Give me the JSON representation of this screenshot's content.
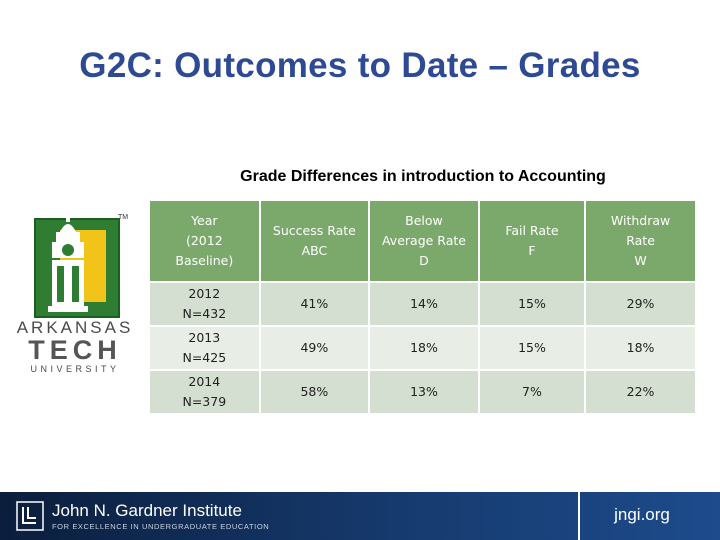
{
  "slide": {
    "title": "G2C: Outcomes to Date – Grades",
    "subtitle": "Grade Differences in introduction to Accounting"
  },
  "logo": {
    "tm": "TM",
    "word1": "ARKANSAS",
    "word2": "TECH",
    "word3": "UNIVERSITY",
    "colors": {
      "green": "#2e7d32",
      "gold": "#f2c318",
      "text": "#4a4a4a"
    }
  },
  "table": {
    "headers": [
      [
        "Year",
        "(2012",
        "Baseline)"
      ],
      [
        "Success Rate",
        "ABC"
      ],
      [
        "Below",
        "Average Rate",
        "D"
      ],
      [
        "Fail Rate",
        "F"
      ],
      [
        "Withdraw",
        "Rate",
        "W"
      ]
    ],
    "rows": [
      {
        "year": "2012",
        "n": "N=432",
        "success": "41%",
        "below_avg": "14%",
        "fail": "15%",
        "withdraw": "29%"
      },
      {
        "year": "2013",
        "n": "N=425",
        "success": "49%",
        "below_avg": "18%",
        "fail": "15%",
        "withdraw": "18%"
      },
      {
        "year": "2014",
        "n": "N=379",
        "success": "58%",
        "below_avg": "13%",
        "fail": "7%",
        "withdraw": "22%"
      }
    ],
    "colors": {
      "header": "#7ba86b",
      "row_odd": "#d5dfd1",
      "row_even": "#e8eee6"
    }
  },
  "footer": {
    "name": "John N. Gardner Institute",
    "tagline": "FOR EXCELLENCE IN UNDERGRADUATE EDUCATION",
    "url": "jngi.org",
    "icon": "gardner-institute-logo-icon"
  }
}
